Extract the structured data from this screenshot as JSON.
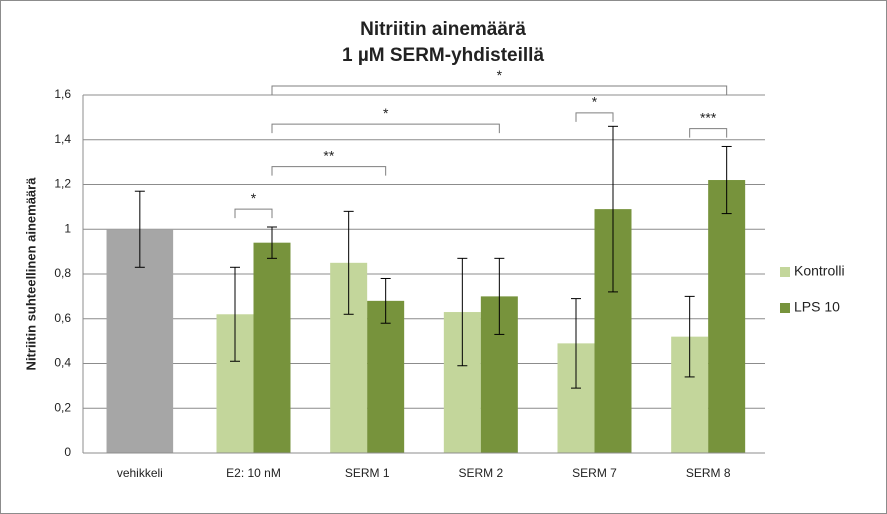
{
  "chart_data": {
    "type": "bar",
    "title": "Nitriitin ainemäärä",
    "subtitle": "1 µM SERM-yhdisteillä",
    "ylabel": "Nitriitin suhteellinen ainemäärä",
    "categories": [
      "vehikkeli",
      "E2: 10 nM",
      "SERM 1",
      "SERM 2",
      "SERM 7",
      "SERM 8"
    ],
    "series": [
      {
        "name": "Kontrolli",
        "color": "#c3d69b",
        "point_colors": [
          "#a6a6a6",
          null,
          null,
          null,
          null,
          null
        ],
        "values": [
          1.0,
          0.62,
          0.85,
          0.63,
          0.49,
          0.52
        ],
        "errors": [
          0.17,
          0.21,
          0.23,
          0.24,
          0.2,
          0.18
        ]
      },
      {
        "name": "LPS 10",
        "color": "#77933c",
        "values": [
          null,
          0.94,
          0.68,
          0.7,
          1.09,
          1.22
        ],
        "errors": [
          null,
          0.07,
          0.1,
          0.17,
          0.37,
          0.15
        ]
      }
    ],
    "ylim": [
      0,
      1.6
    ],
    "yticks": [
      0,
      {
        "value": 0.2,
        "label": "0,2"
      },
      {
        "value": 0.4,
        "label": "0,4"
      },
      {
        "value": 0.6,
        "label": "0,6"
      },
      {
        "value": 0.8,
        "label": "0,8"
      },
      1,
      {
        "value": 1.2,
        "label": "1,2"
      },
      {
        "value": 1.4,
        "label": "1,4"
      },
      {
        "value": 1.6,
        "label": "1,6"
      }
    ],
    "grid": true,
    "legend": "right",
    "significance": [
      {
        "label": "*",
        "from": [
          1,
          0
        ],
        "to": [
          1,
          1
        ],
        "y": 1.09
      },
      {
        "label": "**",
        "from": [
          1,
          1
        ],
        "to": [
          2,
          1
        ],
        "y": 1.28
      },
      {
        "label": "*",
        "from": [
          1,
          1
        ],
        "to": [
          3,
          1
        ],
        "y": 1.47
      },
      {
        "label": "*",
        "from": [
          4,
          0
        ],
        "to": [
          4,
          1
        ],
        "y": 1.52
      },
      {
        "label": "***",
        "from": [
          5,
          0
        ],
        "to": [
          5,
          1
        ],
        "y": 1.45
      },
      {
        "label": "*",
        "from": [
          1,
          1
        ],
        "to": [
          5,
          1
        ],
        "y": 1.64
      }
    ]
  }
}
